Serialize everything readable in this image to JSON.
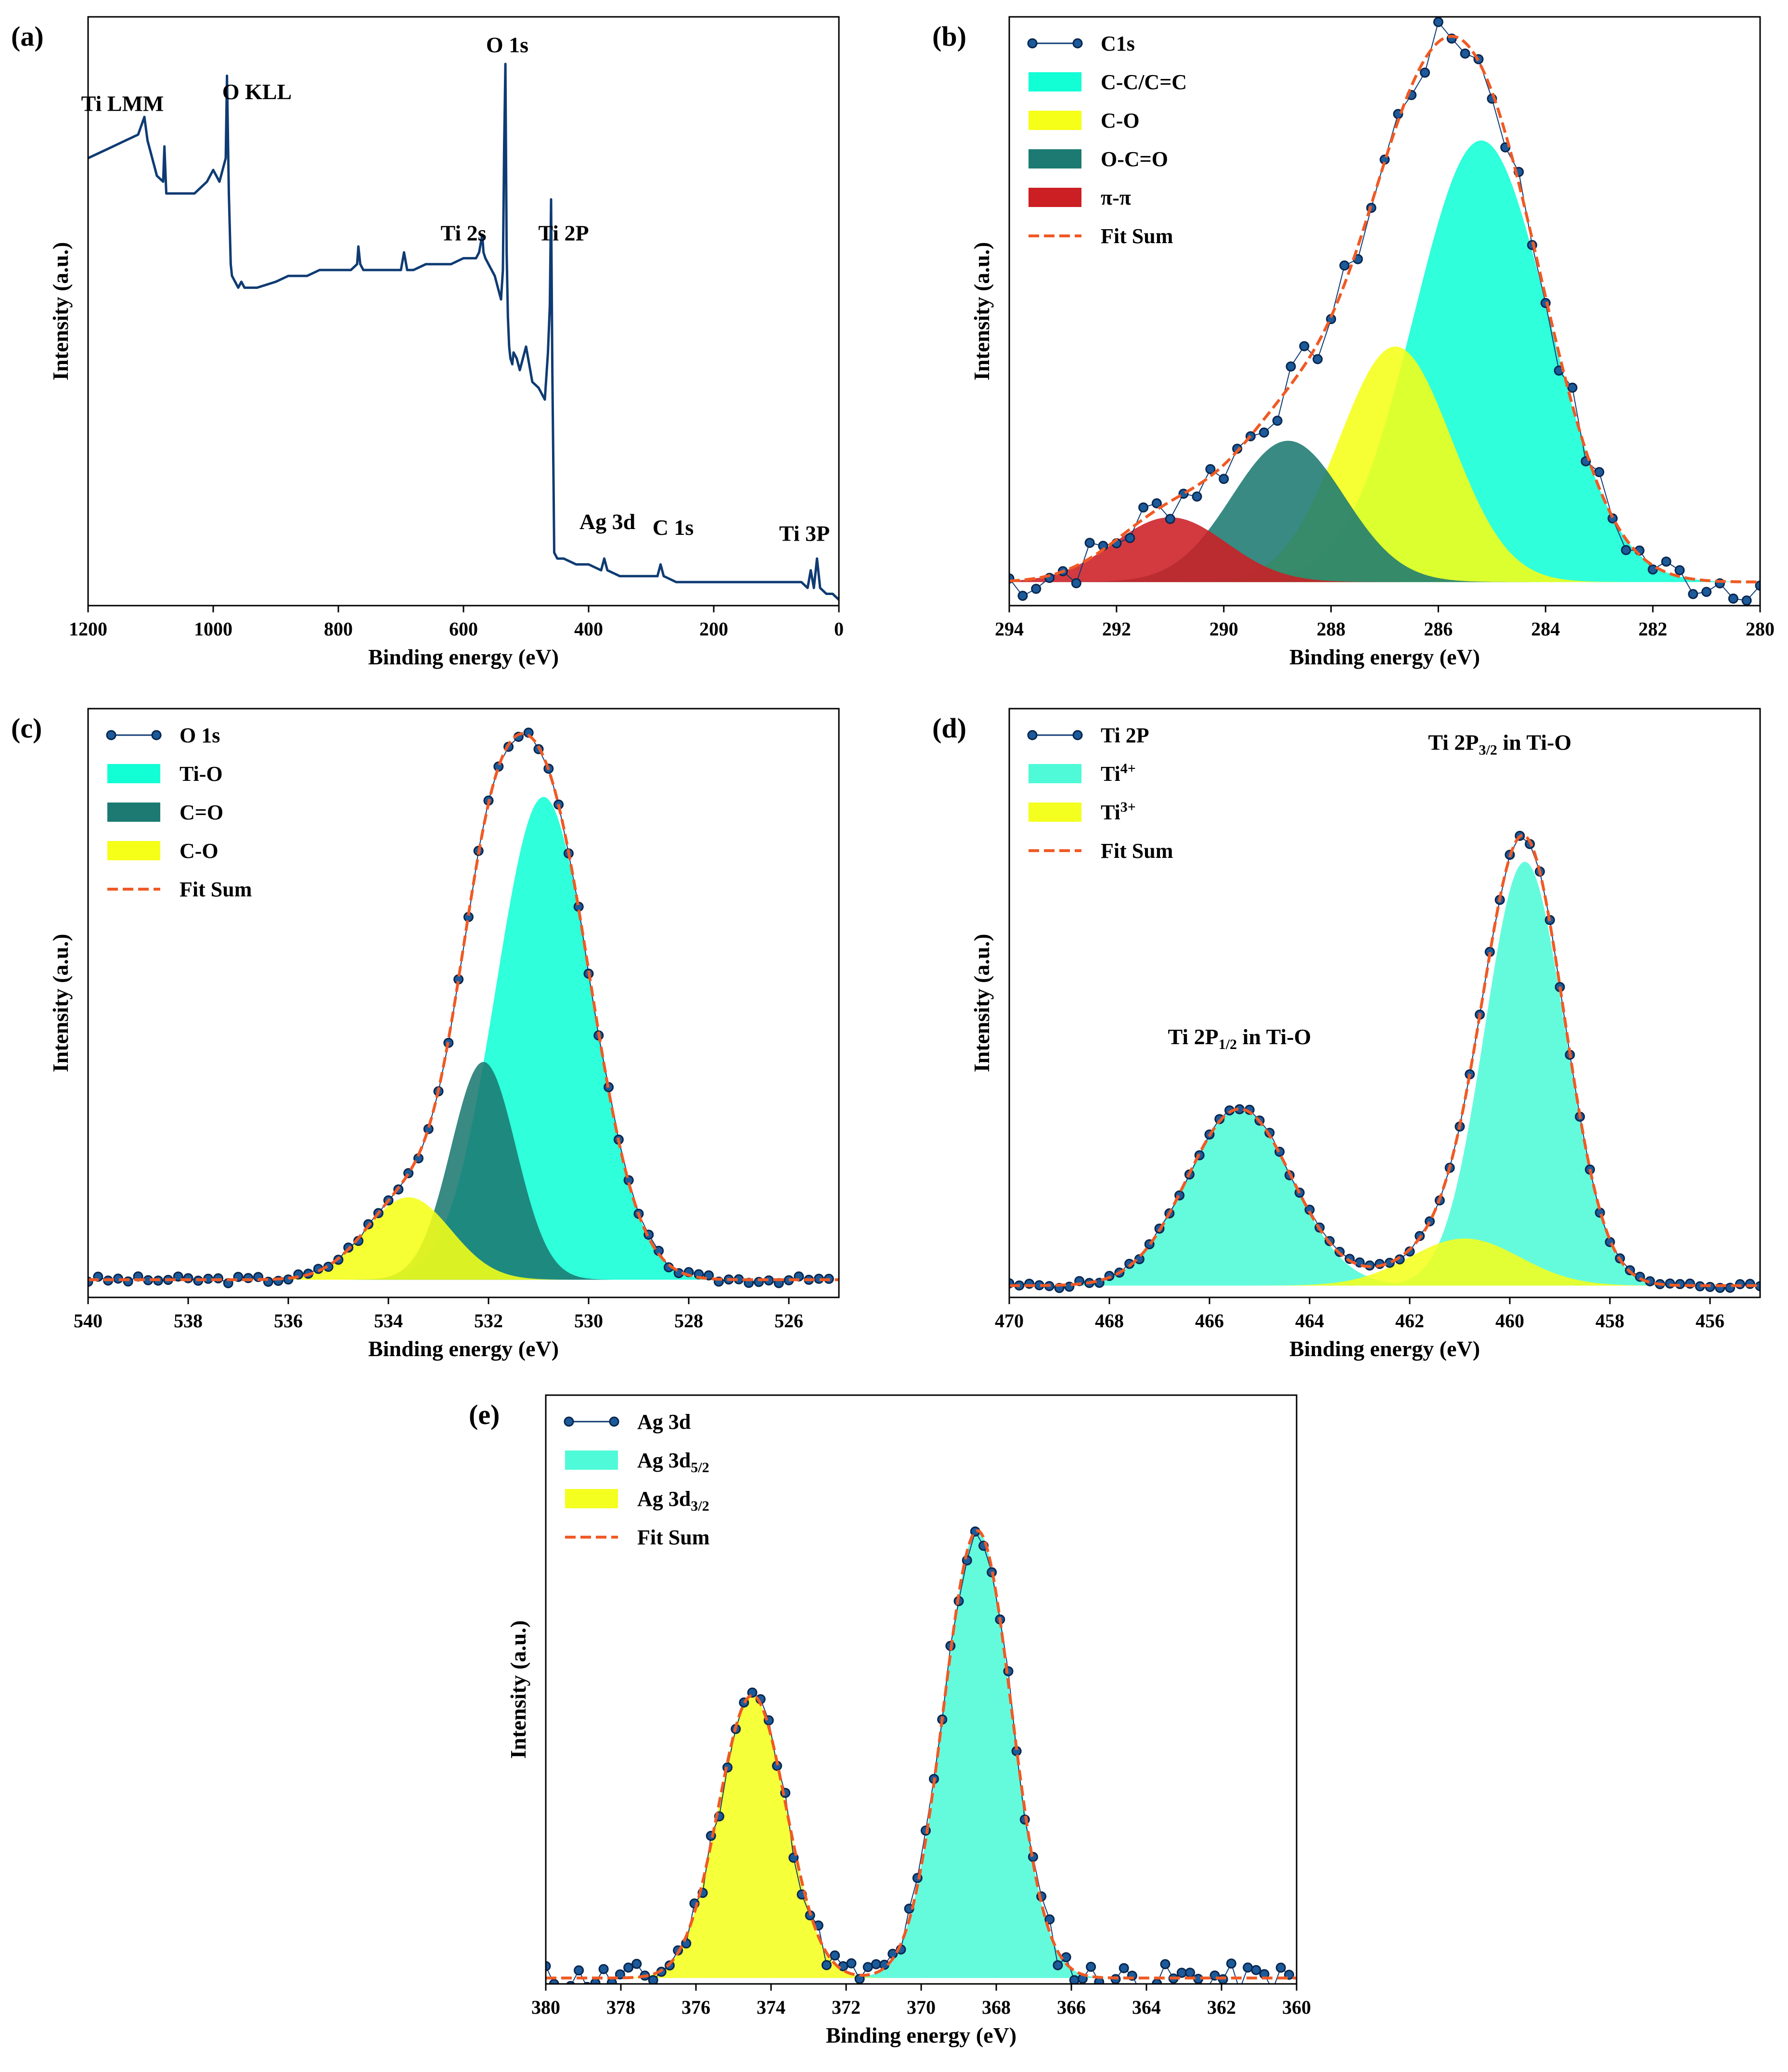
{
  "colors": {
    "data_line": "#0f3b73",
    "marker_fill": "#1c5a9a",
    "fit": "#f05a24",
    "cc": "#12ffd6",
    "co": "#f5ff17",
    "ocoo": "#1c7a72",
    "pi": "#cc1f24",
    "ti4": "#4ffad8",
    "ti3": "#f4ff1f",
    "ag": "#4ffad8",
    "ag32": "#f4ff1f"
  },
  "chart_data": [
    {
      "id": "a",
      "type": "line",
      "panel_label": "(a)",
      "xlabel": "Binding energy (eV)",
      "ylabel": "Intensity (a.u.)",
      "xlim": [
        1200,
        0
      ],
      "ylim": [
        0,
        1
      ],
      "xticks": [
        1200,
        1000,
        800,
        600,
        400,
        200,
        0
      ],
      "series": [
        {
          "name": "survey",
          "style": "line",
          "color": "data_line",
          "x": [
            1200,
            1180,
            1160,
            1140,
            1120,
            1110,
            1105,
            1100,
            1090,
            1080,
            1078,
            1075,
            1070,
            1050,
            1030,
            1010,
            1000,
            995,
            990,
            985,
            980,
            978,
            975,
            972,
            970,
            965,
            960,
            955,
            950,
            930,
            900,
            880,
            850,
            830,
            800,
            780,
            770,
            768,
            765,
            760,
            740,
            720,
            700,
            695,
            690,
            680,
            660,
            640,
            620,
            600,
            590,
            580,
            575,
            570,
            568,
            565,
            560,
            555,
            550,
            545,
            540,
            537,
            535,
            533,
            531,
            529,
            527,
            525,
            522,
            520,
            515,
            510,
            500,
            490,
            480,
            470,
            465,
            462,
            460,
            458,
            456,
            455,
            450,
            440,
            420,
            400,
            380,
            375,
            370,
            350,
            330,
            300,
            290,
            285,
            280,
            260,
            240,
            200,
            180,
            150,
            120,
            100,
            80,
            70,
            60,
            50,
            45,
            40,
            35,
            30,
            20,
            10,
            0
          ],
          "y": [
            0.76,
            0.77,
            0.78,
            0.79,
            0.8,
            0.83,
            0.79,
            0.77,
            0.73,
            0.72,
            0.78,
            0.7,
            0.7,
            0.7,
            0.7,
            0.72,
            0.74,
            0.73,
            0.72,
            0.74,
            0.76,
            0.9,
            0.7,
            0.58,
            0.56,
            0.55,
            0.54,
            0.55,
            0.54,
            0.54,
            0.55,
            0.56,
            0.56,
            0.57,
            0.57,
            0.57,
            0.58,
            0.61,
            0.58,
            0.57,
            0.57,
            0.57,
            0.57,
            0.6,
            0.57,
            0.57,
            0.58,
            0.58,
            0.58,
            0.59,
            0.59,
            0.59,
            0.6,
            0.63,
            0.6,
            0.59,
            0.58,
            0.57,
            0.56,
            0.54,
            0.52,
            0.57,
            0.78,
            0.92,
            0.6,
            0.49,
            0.44,
            0.42,
            0.41,
            0.43,
            0.42,
            0.4,
            0.44,
            0.38,
            0.37,
            0.35,
            0.43,
            0.51,
            0.69,
            0.4,
            0.2,
            0.09,
            0.08,
            0.08,
            0.07,
            0.07,
            0.06,
            0.08,
            0.06,
            0.05,
            0.05,
            0.05,
            0.05,
            0.07,
            0.05,
            0.04,
            0.04,
            0.04,
            0.04,
            0.04,
            0.04,
            0.04,
            0.04,
            0.04,
            0.04,
            0.03,
            0.06,
            0.03,
            0.08,
            0.03,
            0.02,
            0.02,
            0.01
          ]
        }
      ],
      "annotations": [
        {
          "text": "Ti LMM",
          "x": 1145,
          "y": 0.84
        },
        {
          "text": "O KLL",
          "x": 930,
          "y": 0.86
        },
        {
          "text": "O 1s",
          "x": 530,
          "y": 0.94
        },
        {
          "text": "Ti 2s",
          "x": 600,
          "y": 0.62
        },
        {
          "text": "Ti 2P",
          "x": 440,
          "y": 0.62
        },
        {
          "text": "Ag 3d",
          "x": 370,
          "y": 0.13
        },
        {
          "text": "C 1s",
          "x": 265,
          "y": 0.12
        },
        {
          "text": "Ti 3P",
          "x": 55,
          "y": 0.11
        }
      ]
    },
    {
      "id": "b",
      "type": "line",
      "panel_label": "(b)",
      "xlabel": "Binding energy (eV)",
      "ylabel": "Intensity (a.u.)",
      "xlim": [
        294,
        280
      ],
      "ylim": [
        0,
        1
      ],
      "xticks": [
        294,
        292,
        290,
        288,
        286,
        284,
        282,
        280
      ],
      "gaussians": {
        "baseline": 0.04,
        "peaks": [
          {
            "name": "C-C/C=C",
            "center": 285.2,
            "amp": 0.75,
            "sigma": 1.25,
            "color": "cc"
          },
          {
            "name": "C-O",
            "center": 286.8,
            "amp": 0.4,
            "sigma": 1.05,
            "color": "co"
          },
          {
            "name": "O-C=O",
            "center": 288.8,
            "amp": 0.24,
            "sigma": 1.05,
            "color": "ocoo"
          },
          {
            "name": "π-π",
            "center": 291.0,
            "amp": 0.11,
            "sigma": 1.05,
            "color": "pi"
          }
        ]
      },
      "data_points": {
        "noise": 0.035,
        "step": 0.25,
        "seed": 7
      },
      "legend": [
        {
          "label": "C1s",
          "kind": "marker"
        },
        {
          "label": "C-C/C=C",
          "kind": "fill",
          "color": "cc"
        },
        {
          "label": "C-O",
          "kind": "fill",
          "color": "co"
        },
        {
          "label": "O-C=O",
          "kind": "fill",
          "color": "ocoo"
        },
        {
          "label": "π-π",
          "kind": "fill",
          "color": "pi"
        },
        {
          "label": "Fit Sum",
          "kind": "dash"
        }
      ]
    },
    {
      "id": "c",
      "type": "line",
      "panel_label": "(c)",
      "xlabel": "Binding energy (eV)",
      "ylabel": "Intensity (a.u.)",
      "xlim": [
        540,
        525
      ],
      "ylim": [
        0,
        1
      ],
      "xticks": [
        540,
        538,
        536,
        534,
        532,
        530,
        528,
        526
      ],
      "gaussians": {
        "baseline": 0.03,
        "peaks": [
          {
            "name": "Ti-O",
            "center": 530.9,
            "amp": 0.82,
            "sigma": 0.95,
            "color": "cc"
          },
          {
            "name": "C=O",
            "center": 532.1,
            "amp": 0.37,
            "sigma": 0.65,
            "color": "ocoo"
          },
          {
            "name": "C-O",
            "center": 533.6,
            "amp": 0.14,
            "sigma": 0.85,
            "color": "co"
          }
        ]
      },
      "data_points": {
        "noise": 0.006,
        "step": 0.2,
        "seed": 3
      },
      "legend": [
        {
          "label": "O 1s",
          "kind": "marker"
        },
        {
          "label": "Ti-O",
          "kind": "fill",
          "color": "cc"
        },
        {
          "label": "C=O",
          "kind": "fill",
          "color": "ocoo"
        },
        {
          "label": "C-O",
          "kind": "fill",
          "color": "co"
        },
        {
          "label": "Fit Sum",
          "kind": "dash"
        }
      ]
    },
    {
      "id": "d",
      "type": "line",
      "panel_label": "(d)",
      "xlabel": "Binding energy (eV)",
      "ylabel": "Intensity (a.u.)",
      "xlim": [
        470,
        455
      ],
      "ylim": [
        0,
        1
      ],
      "xticks": [
        470,
        468,
        466,
        464,
        462,
        460,
        458,
        456
      ],
      "gaussians": {
        "baseline": 0.02,
        "peaks": [
          {
            "name": "Ti4+ 3/2",
            "center": 459.7,
            "amp": 0.72,
            "sigma": 0.8,
            "color": "ti4"
          },
          {
            "name": "Ti4+ 1/2",
            "center": 465.4,
            "amp": 0.3,
            "sigma": 1.05,
            "color": "ti4"
          },
          {
            "name": "Ti3+",
            "center": 460.9,
            "amp": 0.08,
            "sigma": 1.1,
            "color": "ti3"
          }
        ]
      },
      "data_points": {
        "noise": 0.005,
        "step": 0.2,
        "seed": 5
      },
      "legend": [
        {
          "label": "Ti 2P",
          "kind": "marker"
        },
        {
          "label": "Ti",
          "sup": "4+",
          "kind": "fill",
          "color": "ti4"
        },
        {
          "label": "Ti",
          "sup": "3+",
          "kind": "fill",
          "color": "ti3"
        },
        {
          "label": "Fit Sum",
          "kind": "dash"
        }
      ],
      "annotations": [
        {
          "text": "Ti 2P",
          "sub": "3/2",
          "tail": " in Ti-O",
          "x": 460.2,
          "y": 0.93
        },
        {
          "text": "Ti 2P",
          "sub": "1/2",
          "tail": " in Ti-O",
          "x": 465.4,
          "y": 0.43
        }
      ]
    },
    {
      "id": "e",
      "type": "line",
      "panel_label": "(e)",
      "xlabel": "Binding energy (eV)",
      "ylabel": "Intensity (a.u.)",
      "xlim": [
        380,
        360
      ],
      "ylim": [
        0,
        1
      ],
      "xticks": [
        380,
        378,
        376,
        374,
        372,
        370,
        368,
        366,
        364,
        362,
        360
      ],
      "gaussians": {
        "baseline": 0.01,
        "peaks": [
          {
            "name": "Ag 3d5/2",
            "center": 368.5,
            "amp": 0.76,
            "sigma": 0.9,
            "color": "ag"
          },
          {
            "name": "Ag 3d3/2",
            "center": 374.5,
            "amp": 0.48,
            "sigma": 0.9,
            "color": "ag32"
          }
        ]
      },
      "data_points": {
        "noise": 0.025,
        "step": 0.22,
        "seed": 11
      },
      "legend": [
        {
          "label": "Ag 3d",
          "kind": "marker"
        },
        {
          "label": "Ag 3d",
          "sub": "5/2",
          "kind": "fill",
          "color": "ag"
        },
        {
          "label": "Ag 3d",
          "sub": "3/2",
          "kind": "fill",
          "color": "ag32"
        },
        {
          "label": "Fit Sum",
          "kind": "dash"
        }
      ]
    }
  ]
}
